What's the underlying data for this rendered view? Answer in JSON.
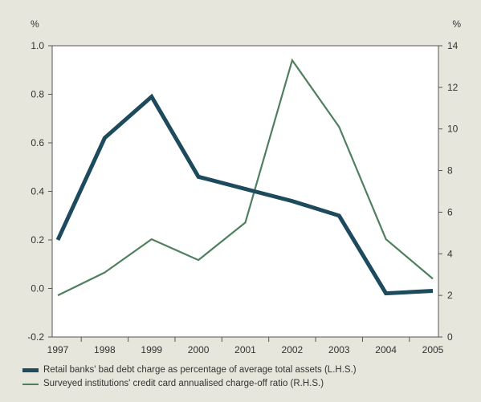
{
  "chart_data": {
    "type": "line",
    "x": [
      "1997",
      "1998",
      "1999",
      "2000",
      "2001",
      "2002",
      "2003",
      "2004",
      "2005"
    ],
    "left_axis": {
      "unit": "%",
      "ylim": [
        -0.2,
        1.0
      ],
      "ticks": [
        "-0.2",
        "0.0",
        "0.2",
        "0.4",
        "0.6",
        "0.8",
        "1.0"
      ]
    },
    "right_axis": {
      "unit": "%",
      "ylim": [
        0,
        14
      ],
      "ticks": [
        "0",
        "2",
        "4",
        "6",
        "8",
        "10",
        "12",
        "14"
      ]
    },
    "grid": false,
    "legend_position": "bottom",
    "series": [
      {
        "name": "Retail banks' bad debt charge as percentage of average total assets (L.H.S.)",
        "axis": "left",
        "color": "#1d4a5c",
        "values": [
          0.2,
          0.62,
          0.79,
          0.46,
          0.41,
          0.36,
          0.3,
          -0.02,
          -0.01
        ]
      },
      {
        "name": "Surveyed institutions' credit card annualised charge-off ratio (R.H.S.)",
        "axis": "right",
        "color": "#4f7f5f",
        "values": [
          2.0,
          3.1,
          4.7,
          3.7,
          5.5,
          13.3,
          10.1,
          4.7,
          2.8
        ]
      }
    ]
  }
}
